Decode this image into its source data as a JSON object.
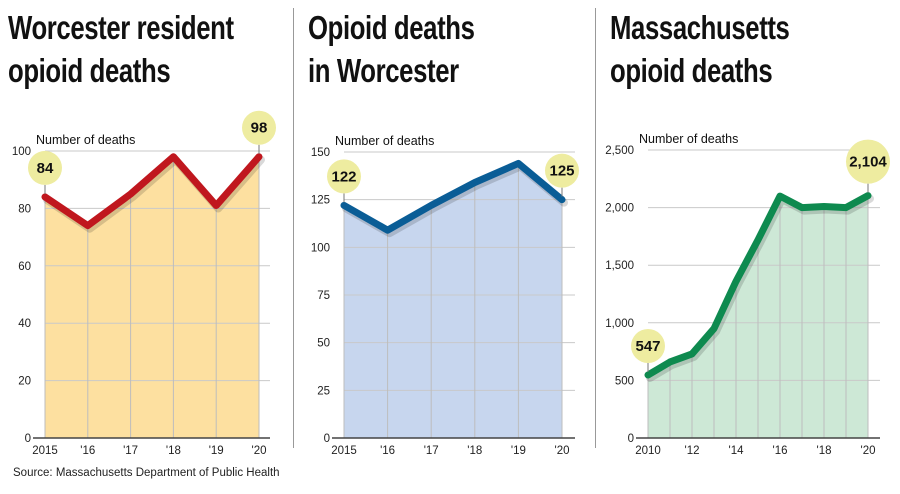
{
  "source": "Source: Massachusetts Department of Public Health",
  "chart_data": [
    {
      "type": "area",
      "title": "Worcester resident opioid deaths",
      "title_lines": [
        "Worcester resident",
        "opioid deaths"
      ],
      "ylabel": "Number of deaths",
      "x": [
        2015,
        2016,
        2017,
        2018,
        2019,
        2020
      ],
      "x_tick_labels": [
        "2015",
        "'16",
        "'17",
        "'18",
        "'19",
        "'20"
      ],
      "y_ticks": [
        0,
        20,
        40,
        60,
        80,
        100
      ],
      "y_tick_labels": [
        "0",
        "20",
        "40",
        "60",
        "80",
        "100"
      ],
      "ylim": [
        0,
        100
      ],
      "values": [
        84,
        74,
        85,
        98,
        81,
        98
      ],
      "callouts": [
        {
          "index": 0,
          "label": "84"
        },
        {
          "index": 5,
          "label": "98"
        }
      ],
      "line_color": "#c0171e",
      "fill_color": "#fde0a0",
      "grid": true
    },
    {
      "type": "area",
      "title": "Opioid deaths in Worcester",
      "title_lines": [
        "Opioid deaths",
        "in Worcester"
      ],
      "ylabel": "Number of deaths",
      "x": [
        2015,
        2016,
        2017,
        2018,
        2019,
        2020
      ],
      "x_tick_labels": [
        "2015",
        "'16",
        "'17",
        "'18",
        "'19",
        "'20"
      ],
      "y_ticks": [
        0,
        25,
        50,
        75,
        100,
        125,
        150
      ],
      "y_tick_labels": [
        "0",
        "25",
        "50",
        "75",
        "100",
        "125",
        "150"
      ],
      "ylim": [
        0,
        150
      ],
      "values": [
        122,
        109,
        122,
        134,
        144,
        125
      ],
      "callouts": [
        {
          "index": 0,
          "label": "122"
        },
        {
          "index": 5,
          "label": "125"
        }
      ],
      "line_color": "#0a5d96",
      "fill_color": "#c7d6ee",
      "grid": true
    },
    {
      "type": "area",
      "title": "Massachusetts opioid deaths",
      "title_lines": [
        "Massachusetts",
        "opioid deaths"
      ],
      "ylabel": "Number of deaths",
      "x": [
        2010,
        2011,
        2012,
        2013,
        2014,
        2015,
        2016,
        2017,
        2018,
        2019,
        2020
      ],
      "x_tick_labels": [
        "2010",
        "",
        "'12",
        "",
        "'14",
        "",
        "'16",
        "",
        "'18",
        "",
        "'20"
      ],
      "y_ticks": [
        0,
        500,
        1000,
        1500,
        2000,
        2500
      ],
      "y_tick_labels": [
        "0",
        "500",
        "1,000",
        "1,500",
        "2,000",
        "2,500"
      ],
      "ylim": [
        0,
        2500
      ],
      "values": [
        547,
        660,
        730,
        950,
        1360,
        1720,
        2100,
        2000,
        2010,
        2000,
        2104
      ],
      "callouts": [
        {
          "index": 0,
          "label": "547"
        },
        {
          "index": 10,
          "label": "2,104"
        }
      ],
      "line_color": "#0e8a4f",
      "fill_color": "#cde8d6",
      "grid": true
    }
  ]
}
